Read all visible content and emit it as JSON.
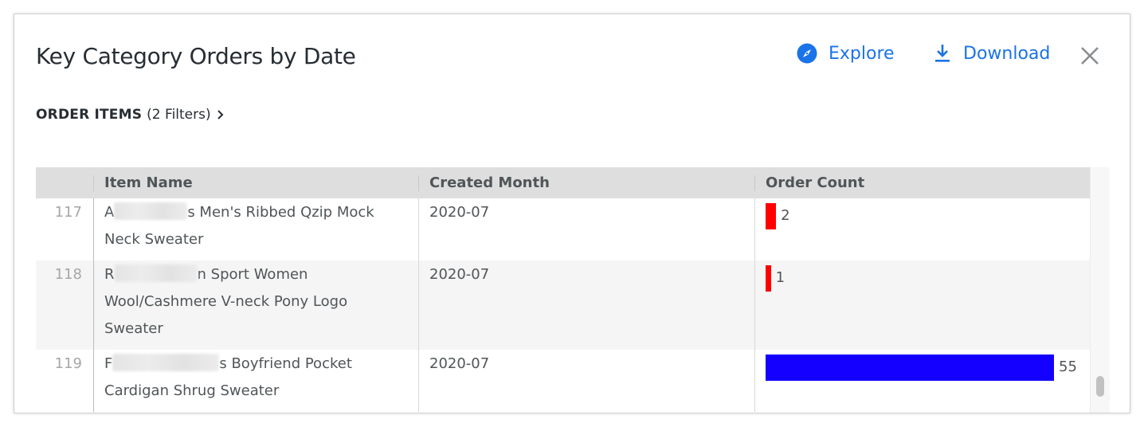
{
  "header": {
    "title": "Key Category Orders by Date",
    "explore_label": "Explore",
    "download_label": "Download",
    "icons": {
      "explore": "compass-icon",
      "download": "download-icon",
      "close": "close-icon"
    }
  },
  "filters": {
    "model": "ORDER ITEMS",
    "count_text": "(2 Filters)"
  },
  "colors": {
    "accent": "#1a73e8",
    "bar_low": "#ff0000",
    "bar_high": "#1400ff"
  },
  "table": {
    "columns": [
      "",
      "Item Name",
      "Created Month",
      "Order Count"
    ],
    "max_count": 55,
    "rows": [
      {
        "num": "117",
        "name_prefix": "A",
        "name_suffix": "s Men's Ribbed Qzip Mock",
        "name_line2": "Neck Sweater",
        "name_line3": "",
        "month": "2020-07",
        "count": "2",
        "value": 2,
        "color": "#ff0000",
        "redact": 92
      },
      {
        "num": "118",
        "name_prefix": "R",
        "name_suffix": "n Sport Women",
        "name_line2": "Wool/Cashmere V-neck Pony Logo",
        "name_line3": "Sweater",
        "month": "2020-07",
        "count": "1",
        "value": 1,
        "color": "#ff0000",
        "redact": 104
      },
      {
        "num": "119",
        "name_prefix": "F",
        "name_suffix": "s Boyfriend Pocket",
        "name_line2": "Cardigan Shrug Sweater",
        "name_line3": "",
        "month": "2020-07",
        "count": "55",
        "value": 55,
        "color": "#1400ff",
        "redact": 134
      }
    ]
  }
}
